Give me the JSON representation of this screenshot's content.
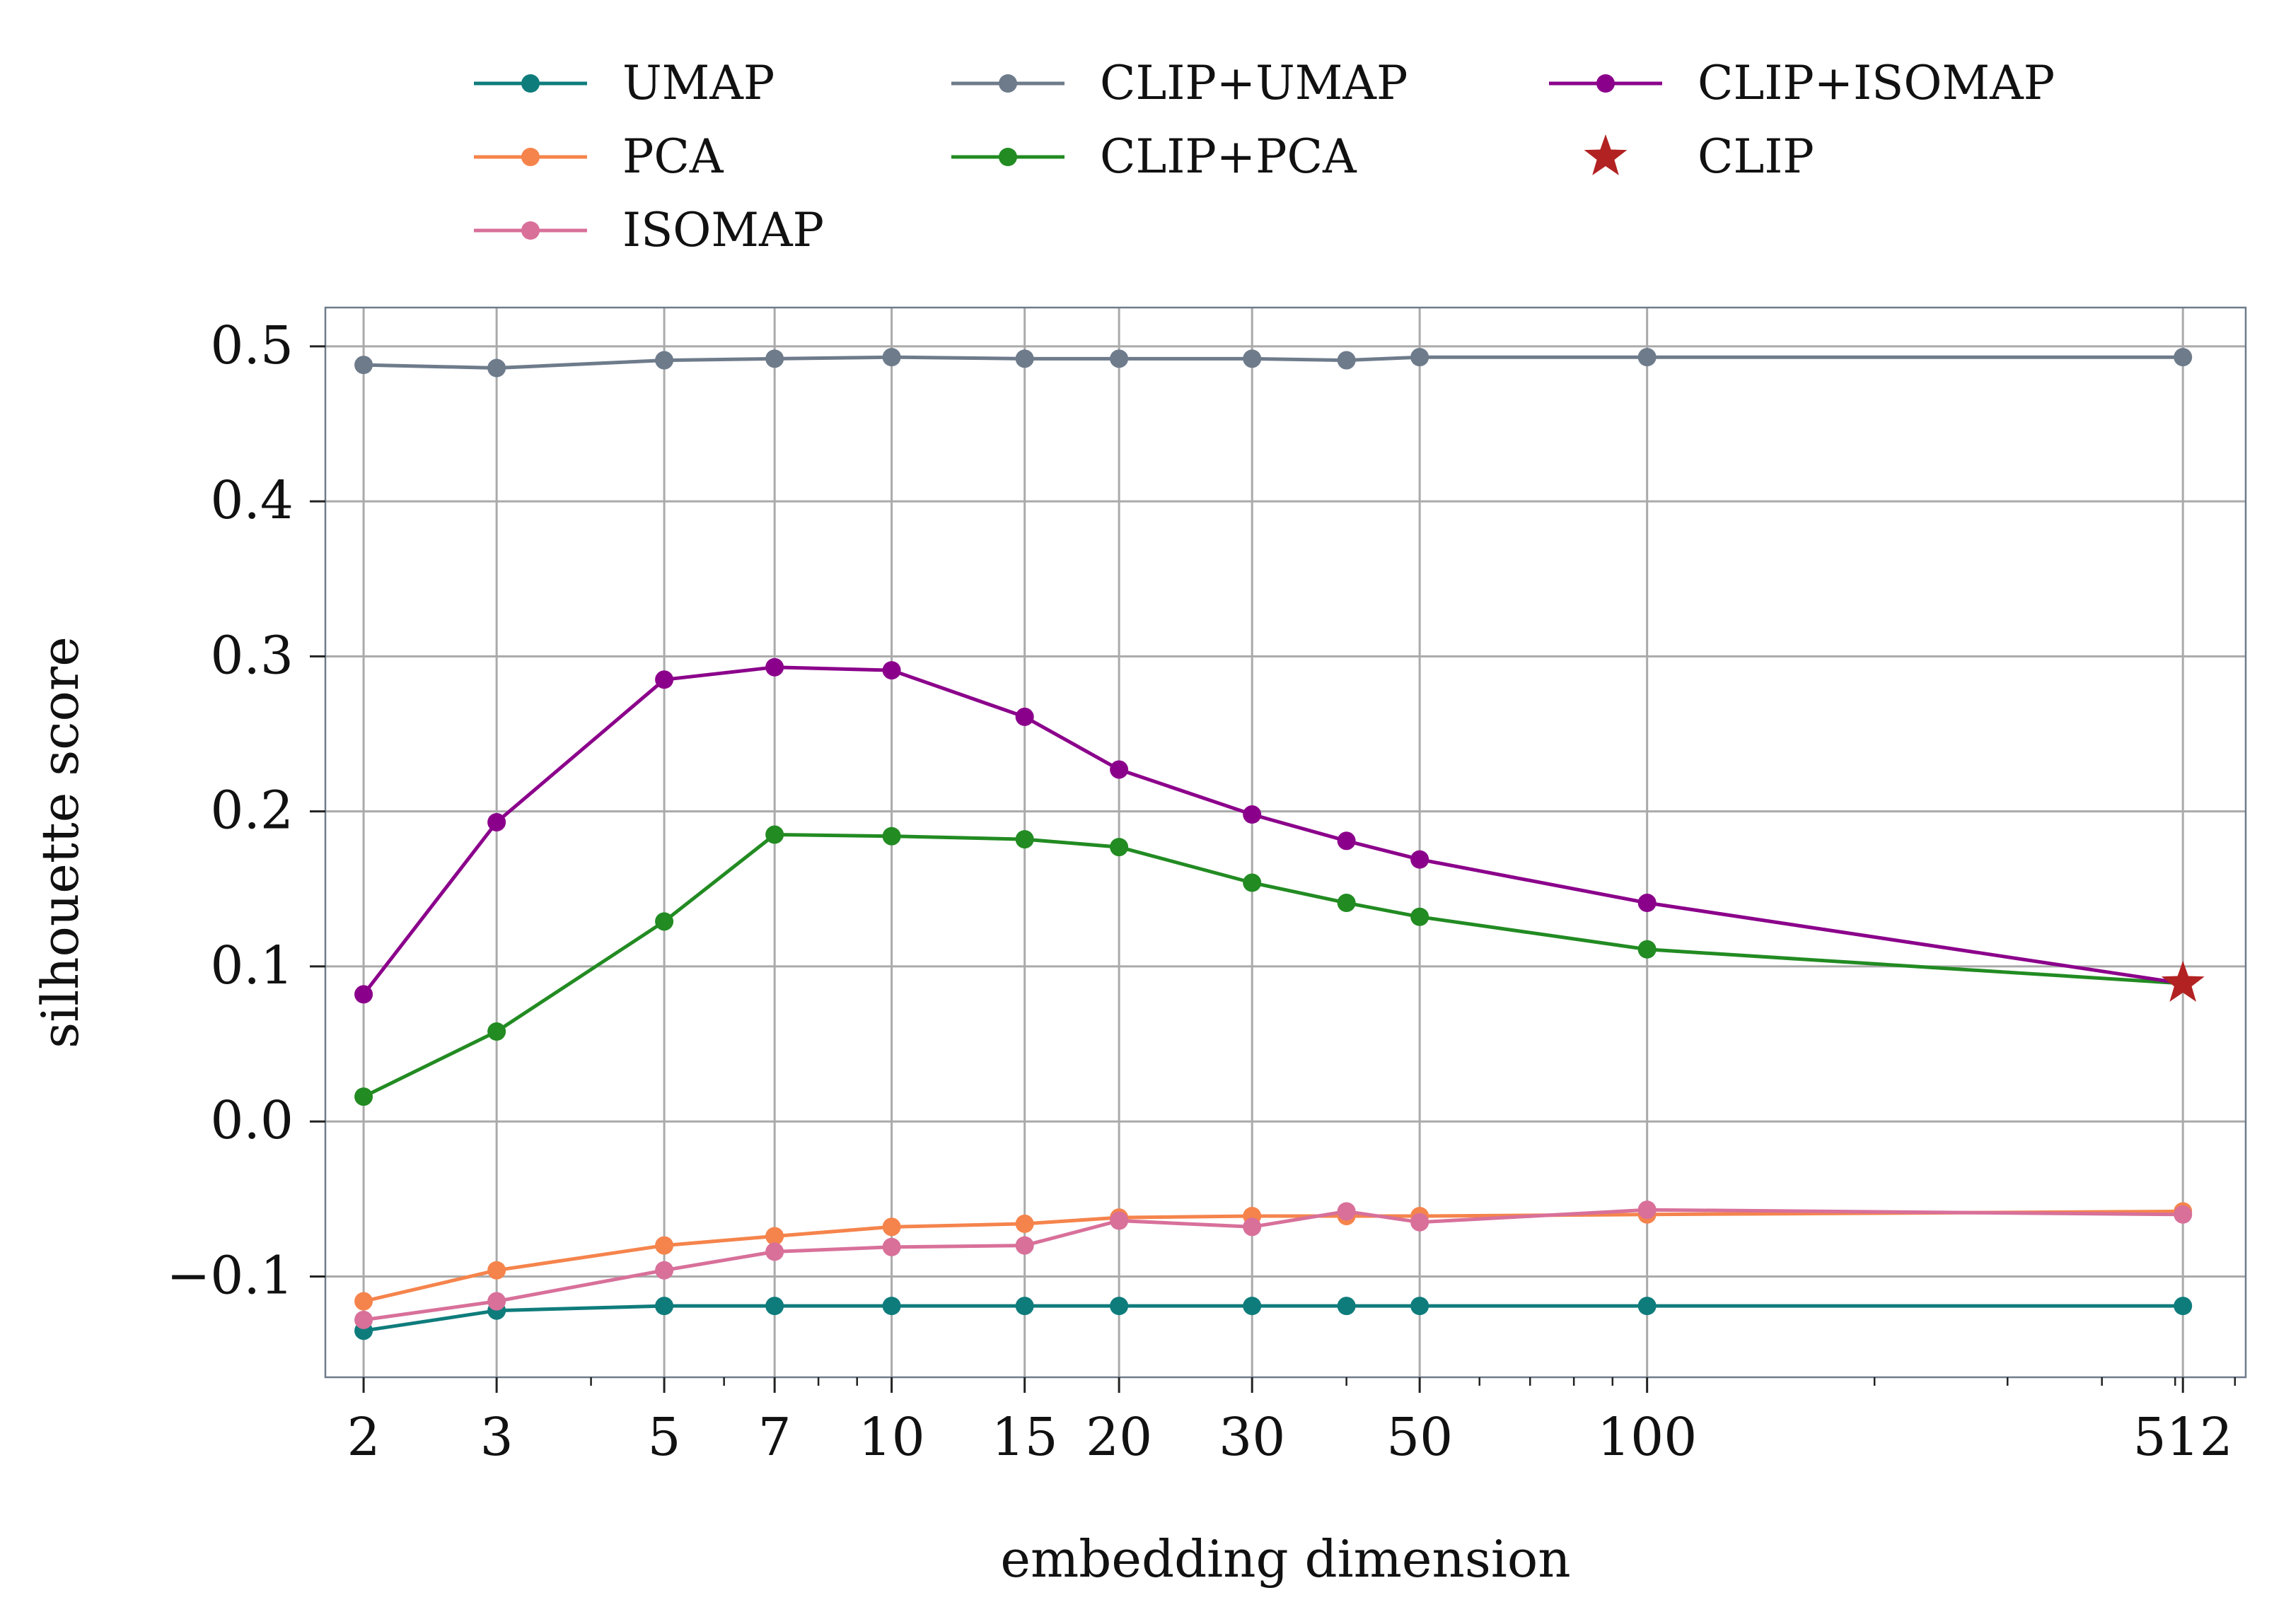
{
  "chart_data": {
    "type": "line",
    "xlabel": "embedding dimension",
    "ylabel": "silhouette score",
    "xscale": "log",
    "xlim": [
      1.78,
      620
    ],
    "ylim": [
      -0.165,
      0.525
    ],
    "x": [
      2,
      3,
      5,
      7,
      10,
      15,
      20,
      30,
      40,
      50,
      100,
      512
    ],
    "x_tick_labels": [
      "2",
      "3",
      "5",
      "7",
      "10",
      "15",
      "20",
      "30",
      "50",
      "100",
      "512"
    ],
    "x_tick_values": [
      2,
      3,
      5,
      7,
      10,
      15,
      20,
      30,
      50,
      100,
      512
    ],
    "y_tick_values": [
      0.5,
      0.4,
      0.3,
      0.2,
      0.1,
      0.0,
      -0.1
    ],
    "y_tick_labels": [
      "0.5",
      "0.4",
      "0.3",
      "0.2",
      "0.1",
      "0.0",
      "−0.1"
    ],
    "grid": true,
    "legend_position": "top",
    "series": [
      {
        "name": "UMAP",
        "color": "#0f7c7c",
        "values": [
          -0.135,
          -0.122,
          -0.119,
          -0.119,
          -0.119,
          -0.119,
          -0.119,
          -0.119,
          -0.119,
          -0.119,
          -0.119,
          -0.119
        ]
      },
      {
        "name": "PCA",
        "color": "#f5844c",
        "values": [
          -0.116,
          -0.096,
          -0.08,
          -0.074,
          -0.068,
          -0.066,
          -0.062,
          -0.061,
          -0.061,
          -0.061,
          -0.06,
          -0.058
        ]
      },
      {
        "name": "ISOMAP",
        "color": "#d8709a",
        "values": [
          -0.128,
          -0.116,
          -0.096,
          -0.084,
          -0.081,
          -0.08,
          -0.064,
          -0.068,
          -0.058,
          -0.065,
          -0.057,
          -0.06
        ]
      },
      {
        "name": "CLIP+UMAP",
        "color": "#6e7b8b",
        "values": [
          0.488,
          0.486,
          0.491,
          0.492,
          0.493,
          0.492,
          0.492,
          0.492,
          0.491,
          0.493,
          0.493,
          0.493
        ]
      },
      {
        "name": "CLIP+PCA",
        "color": "#228b22",
        "values": [
          0.016,
          0.058,
          0.129,
          0.185,
          0.184,
          0.182,
          0.177,
          0.154,
          0.141,
          0.132,
          0.111,
          0.089
        ]
      },
      {
        "name": "CLIP+ISOMAP",
        "color": "#8b008b",
        "values": [
          0.082,
          0.193,
          0.285,
          0.293,
          0.291,
          0.261,
          0.227,
          0.198,
          0.181,
          0.169,
          0.141,
          0.089
        ]
      }
    ],
    "reference": {
      "name": "CLIP",
      "color": "#b22222",
      "marker": "star",
      "x": 512,
      "y": 0.089
    },
    "legend_order": [
      "UMAP",
      "PCA",
      "ISOMAP",
      "CLIP+UMAP",
      "CLIP+PCA",
      "CLIP+ISOMAP",
      "CLIP"
    ]
  },
  "colors": {
    "grid": "#aaaaaa",
    "spine": "#6e7b8b"
  }
}
